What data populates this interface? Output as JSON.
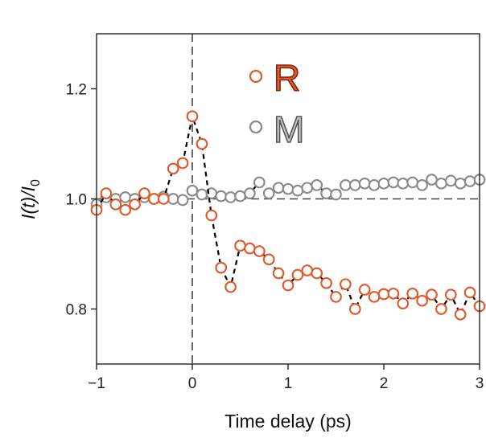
{
  "chart_data": {
    "type": "scatter",
    "xlabel": "Time delay (ps)",
    "ylabel": "I(t)/I",
    "ylabel_subscript": "0",
    "xlim": [
      -1,
      3
    ],
    "ylim": [
      0.7,
      1.3
    ],
    "xticks": [
      -1,
      0,
      1,
      2,
      3
    ],
    "xtick_labels": [
      "−1",
      "0",
      "1",
      "2",
      "3"
    ],
    "yticks": [
      0.8,
      1.0,
      1.2
    ],
    "ytick_labels": [
      "0.8",
      "1.0",
      "1.2"
    ],
    "reference_lines": {
      "x": 0,
      "y": 1.0
    },
    "grid": false,
    "legend_position": "top-center",
    "colors": {
      "R": "#e05a2b",
      "M": "#8a8a8a",
      "M_text": "#c8c8c8",
      "fit": "#000000",
      "reference": "#444444"
    },
    "series": [
      {
        "name": "R",
        "marker": "open-circle",
        "x": [
          -1.0,
          -0.9,
          -0.8,
          -0.7,
          -0.6,
          -0.5,
          -0.4,
          -0.3,
          -0.2,
          -0.1,
          0.0,
          0.1,
          0.2,
          0.3,
          0.4,
          0.5,
          0.6,
          0.7,
          0.8,
          0.9,
          1.0,
          1.1,
          1.2,
          1.3,
          1.4,
          1.5,
          1.6,
          1.7,
          1.8,
          1.9,
          2.0,
          2.1,
          2.2,
          2.3,
          2.4,
          2.5,
          2.6,
          2.7,
          2.8,
          2.9,
          3.0
        ],
        "y": [
          0.98,
          1.01,
          0.99,
          0.98,
          0.99,
          1.01,
          1.0,
          1.0,
          1.055,
          1.065,
          1.15,
          1.1,
          0.97,
          0.875,
          0.84,
          0.915,
          0.91,
          0.905,
          0.89,
          0.865,
          0.843,
          0.862,
          0.87,
          0.865,
          0.847,
          0.822,
          0.845,
          0.8,
          0.835,
          0.822,
          0.827,
          0.828,
          0.81,
          0.828,
          0.815,
          0.826,
          0.8,
          0.826,
          0.79,
          0.83,
          0.805
        ]
      },
      {
        "name": "M",
        "marker": "open-circle",
        "x": [
          -1.0,
          -0.9,
          -0.8,
          -0.7,
          -0.6,
          -0.5,
          -0.4,
          -0.3,
          -0.2,
          -0.1,
          0.0,
          0.1,
          0.2,
          0.3,
          0.4,
          0.5,
          0.6,
          0.7,
          0.8,
          0.9,
          1.0,
          1.1,
          1.2,
          1.3,
          1.4,
          1.5,
          1.6,
          1.7,
          1.8,
          1.9,
          2.0,
          2.1,
          2.2,
          2.3,
          2.4,
          2.5,
          2.6,
          2.7,
          2.8,
          2.9,
          3.0
        ],
        "y": [
          0.99,
          1.003,
          1.0,
          1.003,
          1.0,
          1.003,
          1.0,
          1.004,
          1.0,
          0.998,
          1.015,
          1.008,
          1.01,
          1.005,
          1.003,
          1.005,
          1.01,
          1.03,
          1.01,
          1.02,
          1.018,
          1.015,
          1.02,
          1.025,
          1.01,
          1.008,
          1.025,
          1.025,
          1.028,
          1.025,
          1.028,
          1.03,
          1.028,
          1.03,
          1.025,
          1.035,
          1.028,
          1.033,
          1.028,
          1.032,
          1.035
        ]
      }
    ]
  }
}
